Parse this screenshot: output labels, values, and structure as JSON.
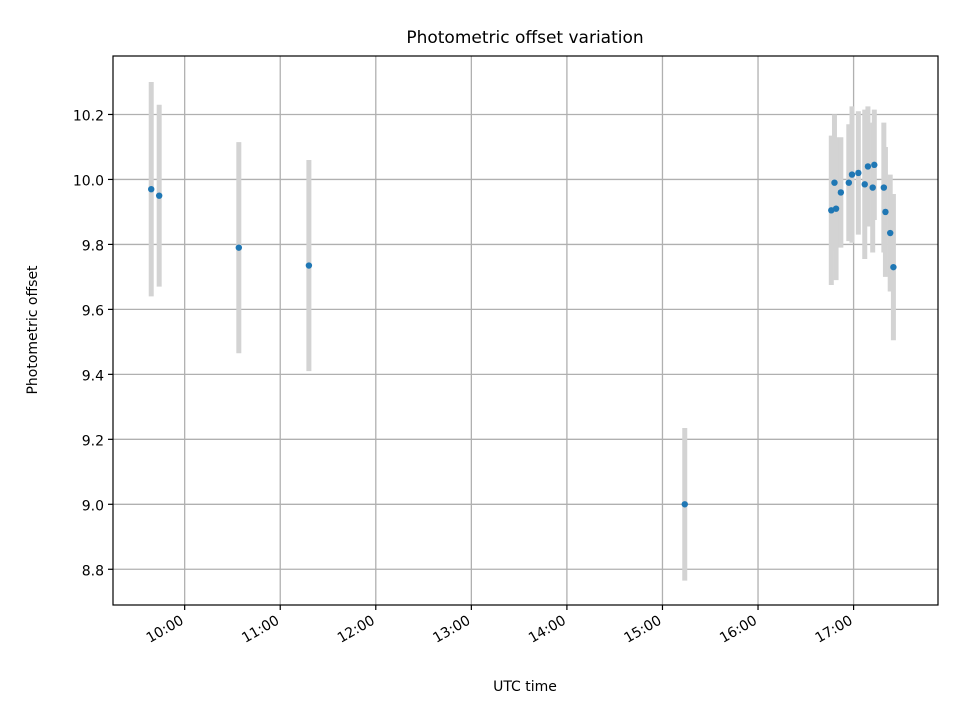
{
  "chart_data": {
    "type": "scatter",
    "title": "Photometric offset variation",
    "xlabel": "UTC time",
    "ylabel": "Photometric offset",
    "xlim": [
      "09:15",
      "17:53"
    ],
    "ylim": [
      8.69,
      10.38
    ],
    "xticks": [
      "10:00",
      "11:00",
      "12:00",
      "13:00",
      "14:00",
      "15:00",
      "16:00",
      "17:00"
    ],
    "yticks": [
      8.8,
      9.0,
      9.2,
      9.4,
      9.6,
      9.8,
      10.0,
      10.2
    ],
    "ytick_labels": [
      "8.8",
      "9.0",
      "9.2",
      "9.4",
      "9.6",
      "9.8",
      "10.0",
      "10.2"
    ],
    "grid": true,
    "colors": {
      "points": "#1f77b4",
      "errorbars": "#d3d3d3",
      "grid": "#b0b0b0"
    },
    "series": [
      {
        "points": [
          {
            "x": "09:39",
            "y": 9.97,
            "yerr": 0.33
          },
          {
            "x": "09:44",
            "y": 9.95,
            "yerr": 0.28
          },
          {
            "x": "10:34",
            "y": 9.79,
            "yerr": 0.325
          },
          {
            "x": "11:18",
            "y": 9.735,
            "yerr": 0.325
          },
          {
            "x": "15:14",
            "y": 9.0,
            "yerr": 0.235
          },
          {
            "x": "16:46",
            "y": 9.905,
            "yerr": 0.23
          },
          {
            "x": "16:48",
            "y": 9.99,
            "yerr": 0.21
          },
          {
            "x": "16:49",
            "y": 9.91,
            "yerr": 0.22
          },
          {
            "x": "16:52",
            "y": 9.96,
            "yerr": 0.17
          },
          {
            "x": "16:57",
            "y": 9.99,
            "yerr": 0.18
          },
          {
            "x": "16:59",
            "y": 10.015,
            "yerr": 0.21
          },
          {
            "x": "17:03",
            "y": 10.02,
            "yerr": 0.19
          },
          {
            "x": "17:07",
            "y": 9.985,
            "yerr": 0.23
          },
          {
            "x": "17:09",
            "y": 10.04,
            "yerr": 0.185
          },
          {
            "x": "17:12",
            "y": 9.975,
            "yerr": 0.2
          },
          {
            "x": "17:13",
            "y": 10.045,
            "yerr": 0.17
          },
          {
            "x": "17:19",
            "y": 9.975,
            "yerr": 0.2
          },
          {
            "x": "17:20",
            "y": 9.9,
            "yerr": 0.2
          },
          {
            "x": "17:23",
            "y": 9.835,
            "yerr": 0.18
          },
          {
            "x": "17:25",
            "y": 9.73,
            "yerr": 0.225
          }
        ]
      }
    ]
  }
}
